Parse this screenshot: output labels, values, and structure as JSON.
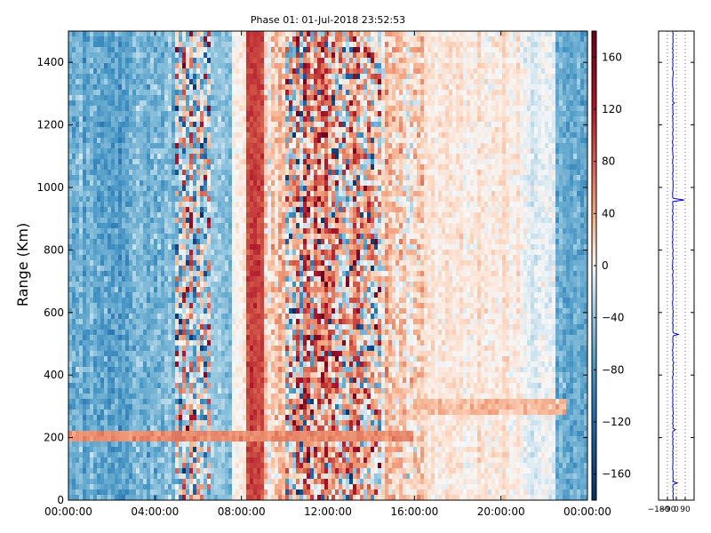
{
  "chart_data": [
    {
      "type": "heatmap",
      "title": "Phase 01: 01-Jul-2018 23:52:53",
      "xlabel": "",
      "ylabel": "Range (Km)",
      "x_ticks": [
        "00:00:00",
        "04:00:00",
        "08:00:00",
        "12:00:00",
        "16:00:00",
        "20:00:00",
        "00:00:00"
      ],
      "x_range_hours": [
        0,
        24
      ],
      "y_ticks": [
        0,
        200,
        400,
        600,
        800,
        1000,
        1200,
        1400
      ],
      "ylim": [
        0,
        1500
      ],
      "colormap": "RdBu_r",
      "colorbar": {
        "ticks": [
          160,
          120,
          80,
          40,
          0,
          -40,
          -80,
          -120,
          -160
        ],
        "range": [
          -180,
          180
        ]
      },
      "time_bands": [
        {
          "start": 0.0,
          "end": 3.0,
          "mean": -60,
          "noise": 35
        },
        {
          "start": 3.0,
          "end": 5.0,
          "mean": -50,
          "noise": 35
        },
        {
          "start": 5.0,
          "end": 6.5,
          "mean": -10,
          "noise": 110
        },
        {
          "start": 6.5,
          "end": 7.5,
          "mean": -45,
          "noise": 30
        },
        {
          "start": 7.5,
          "end": 8.2,
          "mean": 5,
          "noise": 15
        },
        {
          "start": 8.2,
          "end": 9.0,
          "mean": 95,
          "noise": 25
        },
        {
          "start": 9.0,
          "end": 10.0,
          "mean": 20,
          "noise": 40
        },
        {
          "start": 10.0,
          "end": 14.5,
          "mean": 30,
          "noise": 120
        },
        {
          "start": 14.5,
          "end": 16.5,
          "mean": 20,
          "noise": 45
        },
        {
          "start": 16.5,
          "end": 21.0,
          "mean": 8,
          "noise": 18
        },
        {
          "start": 21.0,
          "end": 22.5,
          "mean": -10,
          "noise": 18
        },
        {
          "start": 22.5,
          "end": 24.0,
          "mean": -55,
          "noise": 30
        }
      ],
      "features": [
        {
          "name": "layer-200km",
          "range_km": [
            180,
            220
          ],
          "time_hours": [
            0,
            16
          ],
          "value": 55
        },
        {
          "name": "layer-300km",
          "range_km": [
            280,
            330
          ],
          "time_hours": [
            16,
            23
          ],
          "value": 30
        }
      ]
    },
    {
      "type": "line",
      "title": "",
      "x_ticks": [
        -180,
        -90,
        0,
        90
      ],
      "xlim": [
        -180,
        180
      ],
      "ylim": [
        0,
        1500
      ],
      "color": "#0000cc",
      "median_phase": -35,
      "spikes": [
        {
          "range_km": 55,
          "phase": 10
        },
        {
          "range_km": 225,
          "phase": -10
        },
        {
          "range_km": 440,
          "phase": -25
        },
        {
          "range_km": 530,
          "phase": 20
        },
        {
          "range_km": 960,
          "phase": 80
        },
        {
          "range_km": 1270,
          "phase": -20
        },
        {
          "range_km": 1380,
          "phase": -40
        }
      ]
    }
  ]
}
